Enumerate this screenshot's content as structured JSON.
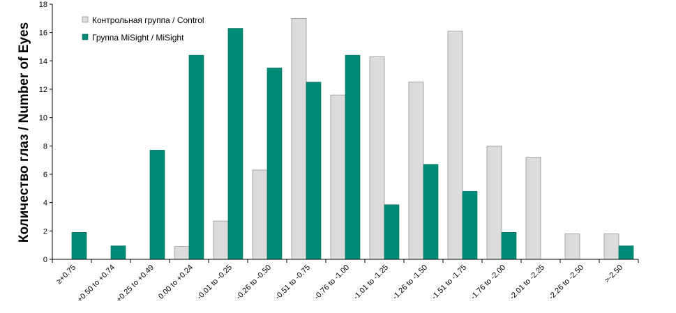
{
  "chart_data": {
    "type": "bar",
    "title": "",
    "xlabel": "",
    "ylabel": "Количество глаз / Number of Eyes",
    "ylim": [
      0,
      18
    ],
    "yticks": [
      0,
      2,
      4,
      6,
      8,
      10,
      12,
      14,
      16,
      18
    ],
    "grid": false,
    "legend_position": "top-left",
    "categories": [
      "≥+0.75",
      "+0.50 to +0.74",
      "+0.25 to +0.49",
      "0.00 to +0.24",
      "-0.01 to -0.25",
      "-0.26 to -0.50",
      "-0.51 to -0.75",
      "-0.76 to -1.00",
      "-1.01 to -1.25",
      "-1.26 to -1.50",
      "-1.51 to -1.75",
      "-1.76 to -2.00",
      "-2.01 to -2.25",
      "-2.26 to -2.50",
      ">-2.50"
    ],
    "series": [
      {
        "name": "Контрольная группа / Control",
        "color": "#dcdcdc",
        "values": [
          0,
          0,
          0,
          0.9,
          2.7,
          6.3,
          17.0,
          11.6,
          14.3,
          12.5,
          16.1,
          8.0,
          7.2,
          1.8,
          1.8
        ]
      },
      {
        "name": "Группа MiSight / MiSight",
        "color": "#008b78",
        "values": [
          1.9,
          0.95,
          7.7,
          14.4,
          16.3,
          13.5,
          12.5,
          14.4,
          3.85,
          6.7,
          4.8,
          1.9,
          0,
          0,
          0.95
        ]
      }
    ]
  }
}
